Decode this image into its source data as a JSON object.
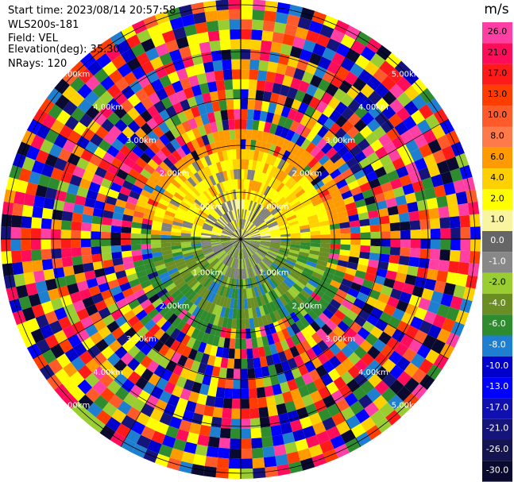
{
  "header": {
    "start_time": "Start time: 2023/08/14 20:57:58",
    "instrument": "WLS200s-181",
    "field": "Field: VEL",
    "elevation": "Elevation(deg): 35.30",
    "nrays": "NRays: 120"
  },
  "chart_data": {
    "type": "heatmap",
    "projection": "polar-ppi",
    "rays": 120,
    "range_rings_km": [
      "1.00km",
      "2.00km",
      "3.00km",
      "4.00km",
      "5.00km"
    ],
    "colorbar": {
      "unit": "m/s",
      "ticks": [
        "26.0",
        "21.0",
        "17.0",
        "13.0",
        "10.0",
        "8.0",
        "6.0",
        "4.0",
        "2.0",
        "1.0",
        "0.0",
        "-1.0",
        "-2.0",
        "-4.0",
        "-6.0",
        "-8.0",
        "-10.0",
        "-13.0",
        "-17.0",
        "-21.0",
        "-26.0",
        "-30.0"
      ],
      "colors": [
        "#ff3fa3",
        "#ff0d5a",
        "#ff1a1a",
        "#ff3d00",
        "#ff5a2a",
        "#ff7a4a",
        "#ff9a00",
        "#ffd000",
        "#ffff00",
        "#f8f4a0",
        "#666666",
        "#888888",
        "#9acd32",
        "#6a8e23",
        "#2e8b2e",
        "#1e7fd0",
        "#0000cd",
        "#0000ff",
        "#1010b0",
        "#14147a",
        "#141450",
        "#0a0a30"
      ]
    },
    "ring_labels": [
      "1.00km",
      "2.00km",
      "3.00km",
      "4.00km",
      "5.00km"
    ]
  }
}
